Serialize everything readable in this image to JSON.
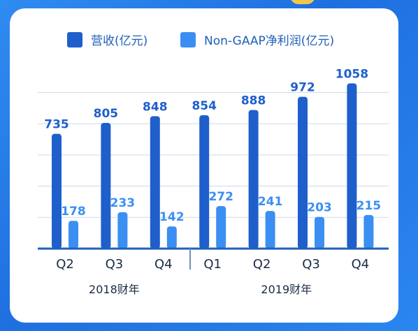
{
  "colors": {
    "revenue": "#1f5fcc",
    "non_gaap": "#3b8ff2",
    "grid": "#cdd9ea",
    "axis": "#1f5fb8"
  },
  "chart_data": {
    "type": "bar",
    "categories": [
      "Q2",
      "Q3",
      "Q4",
      "Q1",
      "Q2",
      "Q3",
      "Q4"
    ],
    "groups": [
      {
        "label": "2018财年",
        "span": [
          0,
          2
        ]
      },
      {
        "label": "2019财年",
        "span": [
          3,
          6
        ]
      }
    ],
    "series": [
      {
        "name": "营收(亿元)",
        "values": [
          735,
          805,
          848,
          854,
          888,
          972,
          1058
        ]
      },
      {
        "name": "Non-GAAP净利润(亿元)",
        "values": [
          178,
          233,
          142,
          272,
          241,
          203,
          215
        ]
      }
    ],
    "ylim": [
      0,
      1150
    ],
    "grid": true,
    "legend_position": "top"
  }
}
